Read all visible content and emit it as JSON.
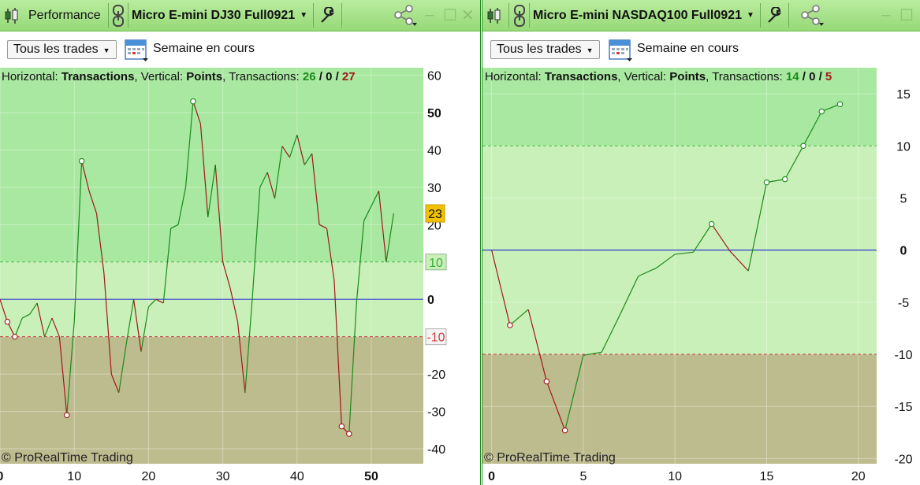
{
  "left": {
    "title_section": "Performance",
    "instrument": "Micro E-mini DJ30 Full0921",
    "filter_dropdown": "Tous les trades",
    "period": "Semaine en cours",
    "info": {
      "h_label": "Horizontal:",
      "h_value": "Transactions",
      "v_label": ", Vertical:",
      "v_value": "Points",
      "t_label": ", Transactions:",
      "wins": "26",
      "sep1": "/",
      "neutral": "0",
      "sep2": "/",
      "losses": "27"
    },
    "copyright": "© ProRealTime Trading",
    "chart_data": {
      "type": "line",
      "x": [
        0,
        1,
        2,
        3,
        4,
        5,
        6,
        7,
        8,
        9,
        10,
        11,
        12,
        13,
        14,
        15,
        16,
        17,
        18,
        19,
        20,
        21,
        22,
        23,
        24,
        25,
        26,
        27,
        28,
        29,
        30,
        31,
        32,
        33,
        34,
        35,
        36,
        37,
        38,
        39,
        40,
        41,
        42,
        43,
        44,
        45,
        46,
        47,
        48,
        49,
        50,
        51,
        52,
        53
      ],
      "values": [
        0,
        -6,
        -10,
        -5,
        -4,
        -1,
        -10,
        -5,
        -10,
        -31,
        -6,
        37,
        29,
        23,
        7,
        -20,
        -25,
        -12,
        0,
        -14,
        -2,
        0,
        -1,
        19,
        20,
        30,
        53,
        47,
        22,
        36,
        10,
        3,
        -6,
        -25,
        1,
        30,
        34,
        27,
        41,
        38,
        44,
        36,
        39,
        20,
        19,
        5,
        -34,
        -36,
        -1,
        21,
        25,
        29,
        10,
        23
      ],
      "up_color": "#1a8a1a",
      "down_color": "#a01818",
      "markers": [
        1,
        2,
        9,
        11,
        26,
        46,
        47
      ],
      "xlim": [
        0,
        57
      ],
      "ylim": [
        -44,
        62
      ],
      "yticks": [
        -40,
        -30,
        -20,
        -10,
        0,
        10,
        20,
        30,
        40,
        50,
        60
      ],
      "xticks": [
        0,
        10,
        20,
        30,
        40,
        50
      ],
      "bold_yticks": [
        0,
        50
      ],
      "bold_xticks": [
        0,
        50
      ],
      "upper_threshold": 10,
      "lower_threshold": -10,
      "last_value": "23",
      "upper_label": "10",
      "lower_label": "-10"
    }
  },
  "right": {
    "instrument": "Micro E-mini NASDAQ100 Full0921",
    "filter_dropdown": "Tous les trades",
    "period": "Semaine en cours",
    "info": {
      "h_label": "Horizontal:",
      "h_value": "Transactions",
      "v_label": ", Vertical:",
      "v_value": "Points",
      "t_label": ", Transactions:",
      "wins": "14",
      "sep1": "/",
      "neutral": "0",
      "sep2": "/",
      "losses": "5"
    },
    "copyright": "© ProRealTime Trading",
    "chart_data": {
      "type": "line",
      "x": [
        0,
        1,
        2,
        3,
        4,
        5,
        6,
        7,
        8,
        9,
        10,
        11,
        12,
        13,
        14,
        15,
        16,
        17,
        18,
        19
      ],
      "values": [
        0,
        -7.2,
        -5.7,
        -12.6,
        -17.3,
        -10.1,
        -9.8,
        -6.2,
        -2.5,
        -1.7,
        -0.4,
        -0.2,
        2.5,
        -0.1,
        -2,
        6.5,
        6.8,
        10,
        13.3,
        14
      ],
      "up_color": "#1a8a1a",
      "down_color": "#a01818",
      "markers": [
        1,
        3,
        4,
        12,
        15,
        16,
        17,
        18,
        19
      ],
      "xlim": [
        -0.5,
        21
      ],
      "ylim": [
        -20.5,
        17.5
      ],
      "yticks": [
        -20,
        -15,
        -10,
        -5,
        0,
        5,
        10,
        15
      ],
      "xticks": [
        0,
        5,
        10,
        15,
        20
      ],
      "bold_yticks": [
        0
      ],
      "bold_xticks": [
        0
      ],
      "upper_threshold": 10,
      "lower_threshold": -10
    }
  },
  "colors": {
    "upper_zone": "#a8e8a0",
    "mid_zone": "#c9f0b8",
    "lower_zone": "#bdbc8e",
    "zero_line": "#2c3ad0"
  }
}
